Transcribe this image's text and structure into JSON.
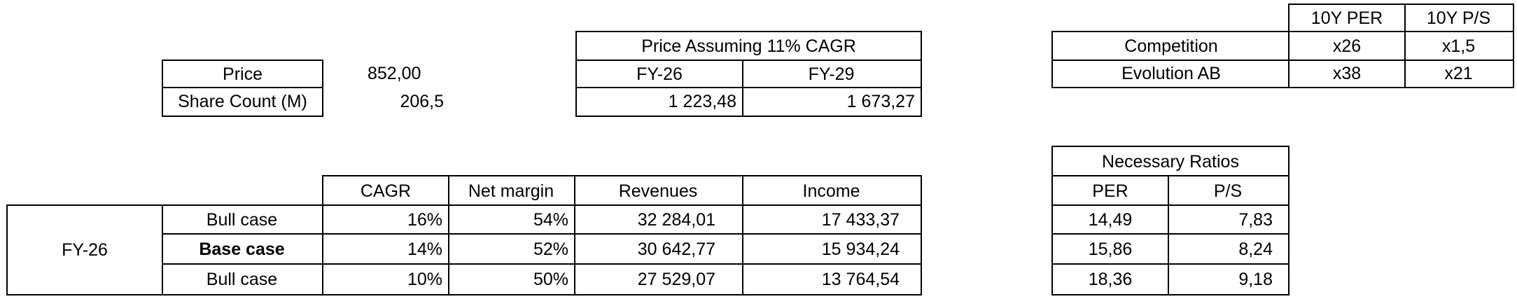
{
  "price_block": {
    "price_label": "Price",
    "price_value": "852,00",
    "share_count_label": "Share Count (M)",
    "share_count_value": "206,5"
  },
  "price_assuming": {
    "title": "Price Assuming 11% CAGR",
    "headers": [
      "FY-26",
      "FY-29"
    ],
    "values": [
      "1 223,48",
      "1 673,27"
    ]
  },
  "comparison": {
    "headers": [
      "10Y PER",
      "10Y P/S"
    ],
    "rows": [
      {
        "label": "Competition",
        "per": "x26",
        "ps": "x1,5"
      },
      {
        "label": "Evolution AB",
        "per": "x38",
        "ps": "x21"
      }
    ]
  },
  "scenarios": {
    "period": "FY-26",
    "headers": [
      "CAGR",
      "Net margin",
      "Revenues",
      "Income"
    ],
    "rows": [
      {
        "label": "Bull case",
        "cagr": "16%",
        "net_margin": "54%",
        "revenues": "32 284,01",
        "income": "17 433,37"
      },
      {
        "label": "Base case",
        "cagr": "14%",
        "net_margin": "52%",
        "revenues": "30 642,77",
        "income": "15 934,24"
      },
      {
        "label": "Bull case",
        "cagr": "10%",
        "net_margin": "50%",
        "revenues": "27 529,07",
        "income": "13 764,54"
      }
    ]
  },
  "necessary_ratios": {
    "title": "Necessary Ratios",
    "headers": [
      "PER",
      "P/S"
    ],
    "rows": [
      {
        "per": "14,49",
        "ps": "7,83"
      },
      {
        "per": "15,86",
        "ps": "8,24"
      },
      {
        "per": "18,36",
        "ps": "9,18"
      }
    ]
  }
}
